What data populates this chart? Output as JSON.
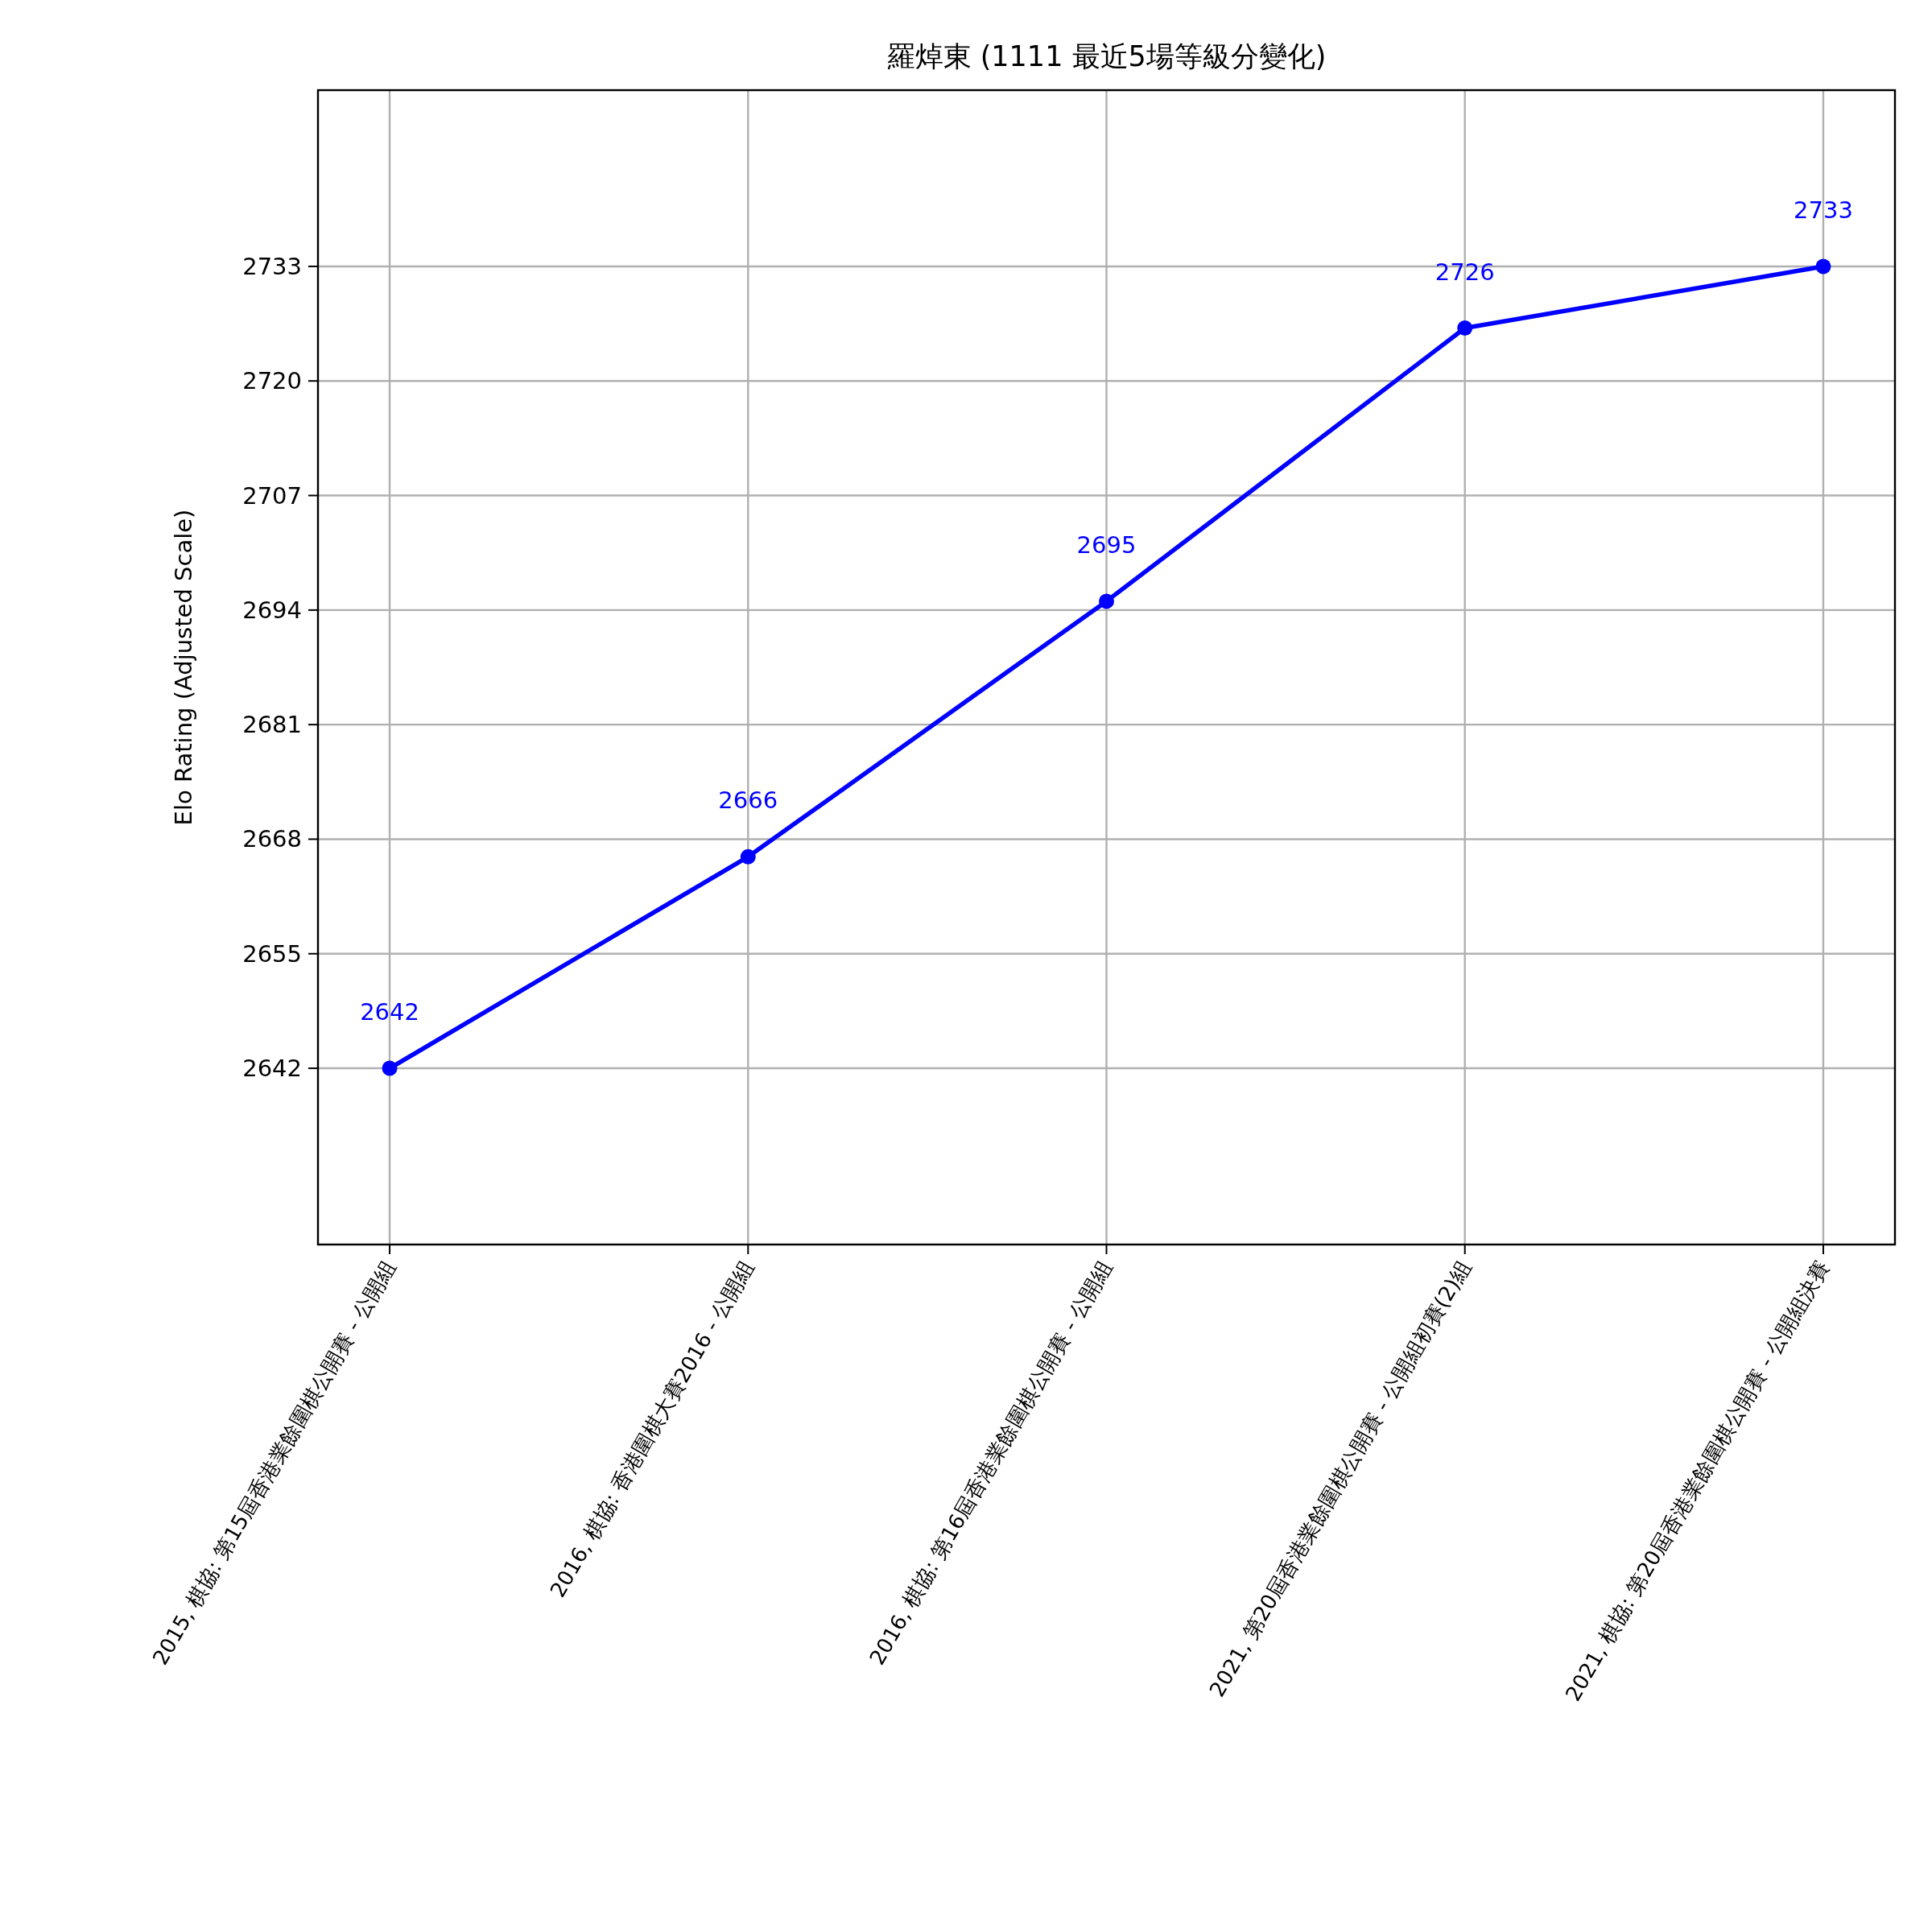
{
  "chart_data": {
    "type": "line",
    "title": "羅焯東 (1111 最近5場等級分變化)",
    "ylabel": "Elo Rating (Adjusted Scale)",
    "categories": [
      "2015, 棋協: 第15屆香港業餘圍棋公開賽 - 公開組",
      "2016, 棋協: 香港圍棋大賽2016 - 公開組",
      "2016, 棋協: 第16屆香港業餘圍棋公開賽 - 公開組",
      "2021, 第20屆香港業餘圍棋公開賽 - 公開組初賽(2)組",
      "2021, 棋協: 第20屆香港業餘圍棋公開賽 - 公開組決賽"
    ],
    "series": [
      {
        "color": "#0000ff",
        "values": [
          2642,
          2666,
          2695,
          2726,
          2733
        ]
      }
    ],
    "ylim": [
      2622,
      2753
    ],
    "yticks": [
      2642,
      2655,
      2668,
      2681,
      2694,
      2707,
      2720,
      2733
    ],
    "grid": true,
    "marker": "circle",
    "line_style": "solid",
    "data_labels": true
  }
}
